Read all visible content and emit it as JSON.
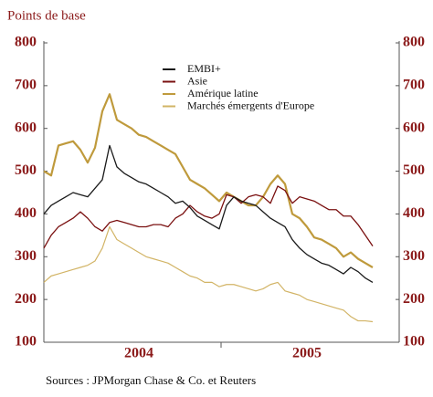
{
  "chart_data": {
    "type": "line",
    "title": "Points de base",
    "source": "Sources : JPMorgan Chase & Co. et Reuters",
    "categories": [
      null,
      null,
      null,
      null,
      null,
      null,
      null,
      null,
      null,
      null,
      null,
      null,
      null,
      "2004",
      null,
      null,
      null,
      null,
      null,
      null,
      null,
      null,
      null,
      null,
      null,
      null,
      null,
      null,
      null,
      null,
      null,
      null,
      null,
      null,
      null,
      null,
      "2005",
      null,
      null,
      null,
      null,
      null,
      null,
      null,
      null,
      null
    ],
    "series": [
      {
        "name": "EMBI+",
        "color": "#1a1a1a",
        "values": [
          400,
          420,
          430,
          440,
          450,
          445,
          440,
          460,
          480,
          560,
          510,
          495,
          485,
          475,
          470,
          460,
          450,
          440,
          425,
          430,
          415,
          395,
          385,
          375,
          365,
          420,
          440,
          430,
          425,
          420,
          405,
          390,
          380,
          370,
          340,
          320,
          305,
          295,
          285,
          280,
          270,
          260,
          275,
          265,
          250,
          240
        ]
      },
      {
        "name": "Asie",
        "color": "#7a1010",
        "values": [
          320,
          350,
          370,
          380,
          390,
          405,
          390,
          370,
          360,
          380,
          385,
          380,
          375,
          370,
          370,
          375,
          375,
          370,
          390,
          400,
          420,
          405,
          395,
          390,
          400,
          445,
          440,
          425,
          440,
          445,
          440,
          425,
          465,
          455,
          425,
          440,
          435,
          430,
          420,
          410,
          410,
          395,
          395,
          375,
          350,
          325
        ]
      },
      {
        "name": "Amérique latine",
        "color": "#bf9a3c",
        "values": [
          500,
          490,
          560,
          565,
          570,
          550,
          520,
          555,
          640,
          680,
          620,
          610,
          600,
          585,
          580,
          570,
          560,
          550,
          540,
          510,
          480,
          470,
          460,
          445,
          430,
          450,
          440,
          430,
          420,
          420,
          440,
          470,
          490,
          470,
          400,
          390,
          370,
          345,
          340,
          330,
          320,
          300,
          310,
          295,
          285,
          275
        ]
      },
      {
        "name": "Marchés émergents d'Europe",
        "color": "#d2b466",
        "values": [
          240,
          255,
          260,
          265,
          270,
          275,
          280,
          290,
          320,
          370,
          340,
          330,
          320,
          310,
          300,
          295,
          290,
          285,
          275,
          265,
          255,
          250,
          240,
          240,
          230,
          235,
          235,
          230,
          225,
          220,
          225,
          235,
          240,
          220,
          215,
          210,
          200,
          195,
          190,
          185,
          180,
          175,
          160,
          150,
          150,
          148
        ]
      }
    ],
    "ylim": [
      100,
      800
    ],
    "yticks": [
      100,
      200,
      300,
      400,
      500,
      600,
      700,
      800
    ],
    "y2lim": [
      100,
      800
    ],
    "y2ticks": [
      100,
      200,
      300,
      400,
      500,
      600,
      700,
      800
    ],
    "grid": false
  }
}
